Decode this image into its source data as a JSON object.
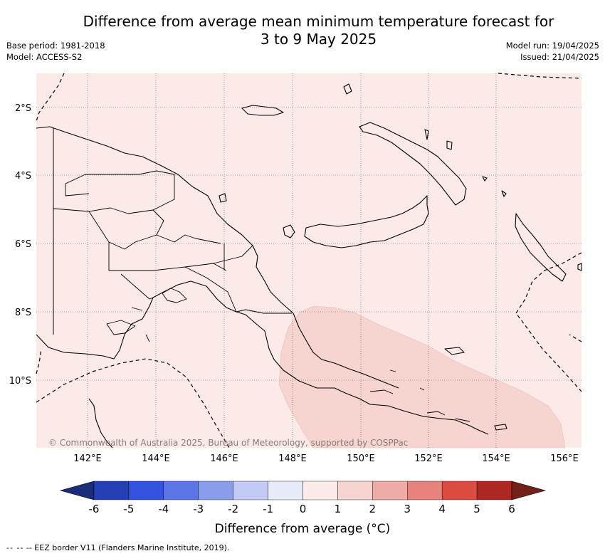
{
  "title_line1": "Difference from average mean minimum temperature forecast for",
  "title_line2": "3 to 9 May 2025",
  "base_period": "Base period: 1981-2018",
  "model": "Model: ACCESS-S2",
  "model_run": "Model run: 19/04/2025",
  "issued": "Issued: 21/04/2025",
  "lat_labels": [
    "2°S",
    "4°S",
    "6°S",
    "8°S",
    "10°S"
  ],
  "lon_labels": [
    "142°E",
    "144°E",
    "146°E",
    "148°E",
    "150°E",
    "152°E",
    "154°E",
    "156°E"
  ],
  "copyright": "© Commonwealth of Australia 2025, Bureau of Meteorology, supported by COSPPac",
  "colorbar": {
    "ticks": [
      "-6",
      "-5",
      "-4",
      "-3",
      "-2",
      "-1",
      "0",
      "1",
      "2",
      "3",
      "4",
      "5",
      "6"
    ],
    "colors": [
      "#1b2c7a",
      "#2540b4",
      "#3352de",
      "#5b74e6",
      "#8a9ded",
      "#c3caf5",
      "#e8ebfa",
      "#fcebe9",
      "#f6d4d0",
      "#efaba6",
      "#e7827c",
      "#db4b40",
      "#ad2822",
      "#74201a"
    ],
    "title": "Difference from average (°C)"
  },
  "map_colors": {
    "background": "#fbeae8",
    "highlight": "#f6d4d0",
    "coast": "#000000"
  },
  "footnote": "-- EEZ border V11 (Flanders Marine Institute, 2019)."
}
